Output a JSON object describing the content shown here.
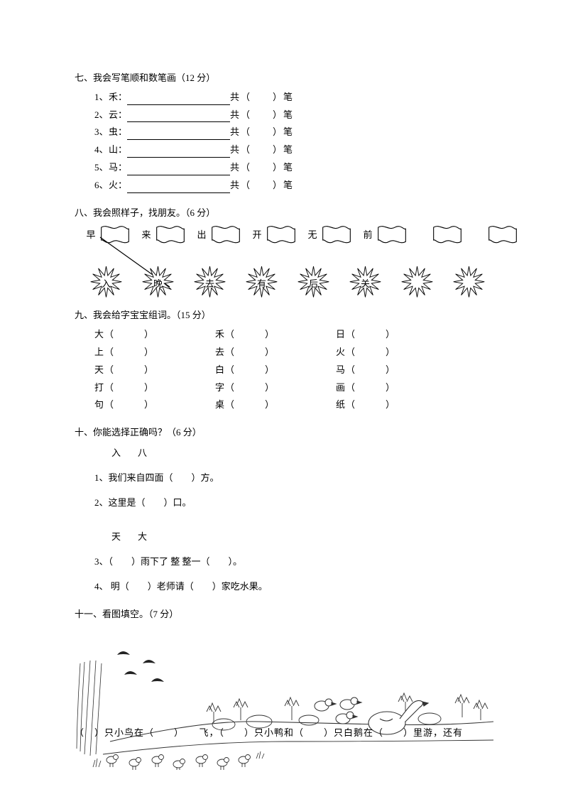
{
  "colors": {
    "text": "#000000",
    "bg": "#ffffff",
    "line": "#000000"
  },
  "q7": {
    "heading": "七、我会写笔顺和数笔画（12 分）",
    "items": [
      {
        "num": "1、",
        "char": "禾："
      },
      {
        "num": "2、",
        "char": "云："
      },
      {
        "num": "3、",
        "char": "虫："
      },
      {
        "num": "4、",
        "char": "山："
      },
      {
        "num": "5、",
        "char": "马："
      },
      {
        "num": "6、",
        "char": "火："
      }
    ],
    "suffix": "共（　　）笔"
  },
  "q8": {
    "heading": "八、我会照样子，找朋友。（6 分）",
    "top": [
      "早",
      "来",
      "出",
      "开",
      "无",
      "前",
      "",
      ""
    ],
    "bottom": [
      "入",
      "晚",
      "去",
      "有",
      "后",
      "关",
      "",
      ""
    ]
  },
  "q9": {
    "heading": "九、我会给字宝宝组词。（15 分）",
    "rows": [
      [
        "大",
        "禾",
        "日"
      ],
      [
        "上",
        "去",
        "火"
      ],
      [
        "天",
        "白",
        "马"
      ],
      [
        "打",
        "字",
        "画"
      ],
      [
        "句",
        "桌",
        "纸"
      ]
    ],
    "paren": "（　　　）"
  },
  "q10": {
    "heading": "十、你能选择正确吗？（6 分）",
    "group1": {
      "opts": "入八",
      "lines": [
        "1、我们来自四面（　　）方。",
        "2、这里是（　　）口。"
      ]
    },
    "group2": {
      "opts": "天大",
      "lines": [
        "3、（　　）雨下了 整 整一（　　）。",
        "4、 明（　　）老师请（　　）家吃水果。"
      ]
    }
  },
  "q11": {
    "heading": "十一、看图填空。（7 分）",
    "sentence": "（　）只小鸟在（　　）　　飞，（　　）只小鸭和（　　）只白鹅在（　　）里游，还有"
  }
}
